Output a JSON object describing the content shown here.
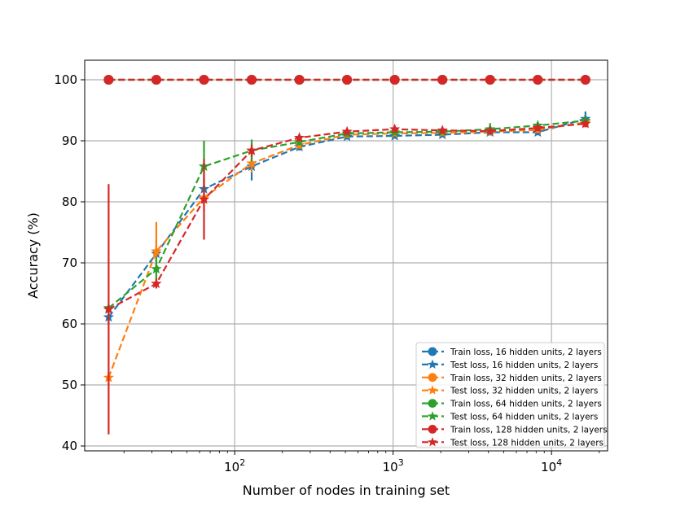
{
  "chart_data": {
    "type": "line",
    "title": "",
    "xlabel": "Number of nodes in training set",
    "ylabel": "Accuracy (%)",
    "xscale": "log",
    "xlim": [
      11.3,
      22600
    ],
    "ylim": [
      39.2,
      103.2
    ],
    "grid": true,
    "legend_position": "lower-right",
    "x": [
      16,
      32,
      64,
      128,
      256,
      512,
      1024,
      2048,
      4096,
      8192,
      16384
    ],
    "x_ticks": [
      {
        "value": 100,
        "base": "10",
        "exp": "2"
      },
      {
        "value": 1000,
        "base": "10",
        "exp": "3"
      },
      {
        "value": 10000,
        "base": "10",
        "exp": "4"
      }
    ],
    "y_ticks": [
      40,
      50,
      60,
      70,
      80,
      90,
      100
    ],
    "series": [
      {
        "name": "Train loss, 16 hidden units, 2 layers",
        "color": "#1f77b4",
        "marker": "circle",
        "values": [
          100,
          100,
          100,
          100,
          100,
          100,
          100,
          100,
          100,
          100,
          100
        ],
        "errors": [
          0,
          0,
          0,
          0,
          0,
          0,
          0,
          0,
          0,
          0,
          0
        ]
      },
      {
        "name": "Test loss, 16 hidden units, 2 layers",
        "color": "#1f77b4",
        "marker": "star",
        "values": [
          61.1,
          71.5,
          82.1,
          85.8,
          89.0,
          90.7,
          90.8,
          91.0,
          91.4,
          91.4,
          93.6
        ],
        "errors": [
          1.2,
          2.2,
          1.8,
          2.3,
          0.6,
          0.5,
          0.4,
          0.4,
          0.5,
          0.5,
          1.2
        ]
      },
      {
        "name": "Train loss, 32 hidden units, 2 layers",
        "color": "#ff7f0e",
        "marker": "circle",
        "values": [
          100,
          100,
          100,
          100,
          100,
          100,
          100,
          100,
          100,
          100,
          100
        ],
        "errors": [
          0,
          0,
          0,
          0,
          0,
          0,
          0,
          0,
          0,
          0,
          0
        ]
      },
      {
        "name": "Test loss, 32 hidden units, 2 layers",
        "color": "#ff7f0e",
        "marker": "star",
        "values": [
          51.2,
          71.9,
          80.7,
          86.3,
          89.3,
          91.0,
          91.2,
          91.3,
          91.5,
          91.8,
          93.0
        ],
        "errors": [
          1.0,
          4.8,
          2.2,
          1.5,
          0.6,
          0.5,
          0.4,
          0.4,
          0.5,
          0.5,
          0.8
        ]
      },
      {
        "name": "Train loss, 64 hidden units, 2 layers",
        "color": "#2ca02c",
        "marker": "circle",
        "values": [
          100,
          100,
          100,
          100,
          100,
          100,
          100,
          100,
          100,
          100,
          100
        ],
        "errors": [
          0,
          0,
          0,
          0,
          0,
          0,
          0,
          0,
          0,
          0,
          0
        ]
      },
      {
        "name": "Test loss, 64 hidden units, 2 layers",
        "color": "#2ca02c",
        "marker": "star",
        "values": [
          62.6,
          69.0,
          85.8,
          88.4,
          89.8,
          91.2,
          91.4,
          91.5,
          91.9,
          92.5,
          93.3
        ],
        "errors": [
          0.6,
          2.0,
          4.2,
          1.8,
          0.5,
          0.5,
          0.4,
          0.4,
          1.0,
          0.6,
          0.8
        ]
      },
      {
        "name": "Train loss, 128 hidden units, 2 layers",
        "color": "#d62728",
        "marker": "circle",
        "values": [
          100,
          100,
          100,
          100,
          100,
          100,
          100,
          100,
          100,
          100,
          100
        ],
        "errors": [
          0,
          0,
          0,
          0,
          0,
          0,
          0,
          0,
          0,
          0,
          0
        ]
      },
      {
        "name": "Test loss, 128 hidden units, 2 layers",
        "color": "#d62728",
        "marker": "star",
        "values": [
          62.4,
          66.6,
          80.4,
          88.4,
          90.5,
          91.5,
          91.9,
          91.7,
          91.6,
          92.1,
          92.8
        ],
        "errors": [
          20.5,
          0.8,
          6.6,
          1.0,
          0.5,
          0.5,
          0.5,
          0.5,
          0.5,
          0.5,
          0.6
        ]
      }
    ]
  }
}
